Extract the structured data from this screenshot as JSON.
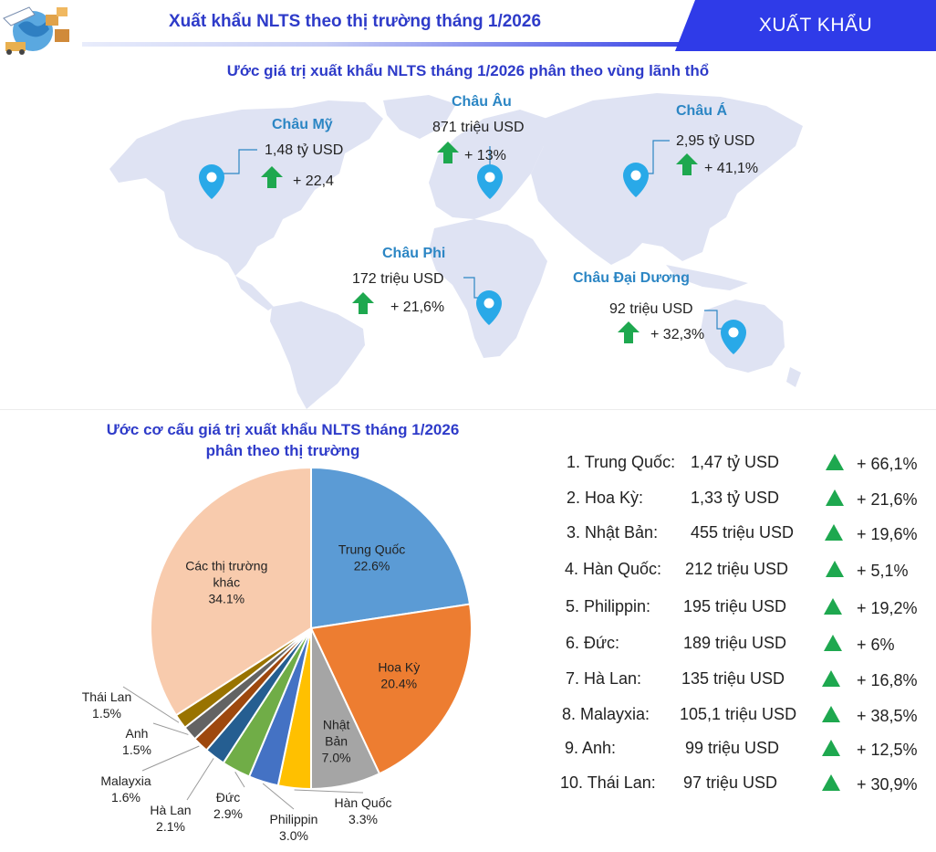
{
  "header": {
    "title": "Xuất khẩu NLTS theo thị trường tháng 1/2026",
    "badge": "XUẤT KHẨU"
  },
  "map": {
    "title": "Ước giá trị xuất khẩu NLTS tháng 1/2026 phân theo vùng lãnh thổ",
    "regions": [
      {
        "name": "Châu Mỹ",
        "value": "1,48 tỷ USD",
        "growth": "+ 22,4"
      },
      {
        "name": "Châu Âu",
        "value": "871 triệu USD",
        "growth": "+ 13%"
      },
      {
        "name": "Châu Á",
        "value": "2,95 tỷ USD",
        "growth": "+ 41,1%"
      },
      {
        "name": "Châu Phi",
        "value": "172 triệu USD",
        "growth": "+ 21,6%"
      },
      {
        "name": "Châu Đại Dương",
        "value": "92 triệu USD",
        "growth": "+ 32,3%"
      }
    ]
  },
  "chart_data": {
    "type": "pie",
    "title": "Ước cơ cấu giá trị xuất khẩu NLTS tháng 1/2026\nphân theo thị trường",
    "title_lines": [
      "Ước cơ cấu giá trị xuất khẩu NLTS tháng 1/2026",
      "phân theo thị trường"
    ],
    "categories": [
      "Trung Quốc",
      "Hoa Kỳ",
      "Nhật Bản",
      "Hàn Quốc",
      "Philippin",
      "Đức",
      "Hà Lan",
      "Malayxia",
      "Anh",
      "Thái Lan",
      "Các thị trường khác"
    ],
    "values": [
      22.6,
      20.4,
      7.0,
      3.3,
      3.0,
      2.9,
      2.1,
      1.6,
      1.5,
      1.5,
      34.1
    ],
    "labels": [
      "22.6%",
      "20.4%",
      "7.0%",
      "3.3%",
      "3.0%",
      "2.9%",
      "2.1%",
      "1.6%",
      "1.5%",
      "1.5%",
      "34.1%"
    ],
    "colors": [
      "#5b9bd5",
      "#ed7d31",
      "#a5a5a5",
      "#ffc000",
      "#4472c4",
      "#70ad47",
      "#255e91",
      "#9e480e",
      "#636363",
      "#997300",
      "#f8cbad"
    ]
  },
  "ranking": [
    {
      "name": "1. Trung Quốc:",
      "value": "1,47 tỷ USD",
      "growth": "+ 66,1%"
    },
    {
      "name": "2. Hoa Kỳ:",
      "value": "1,33 tỷ USD",
      "growth": "+ 21,6%"
    },
    {
      "name": "3. Nhật Bản:",
      "value": "455 triệu USD",
      "growth": "+ 19,6%"
    },
    {
      "name": "4. Hàn Quốc:",
      "value": "212 triệu USD",
      "growth": "+ 5,1%"
    },
    {
      "name": "5. Philippin:",
      "value": "195 triệu USD",
      "growth": "+ 19,2%"
    },
    {
      "name": "6. Đức:",
      "value": "189 triệu USD",
      "growth": "+ 6%"
    },
    {
      "name": "7. Hà Lan:",
      "value": "135 triệu USD",
      "growth": "+ 16,8%"
    },
    {
      "name": "8. Malayxia:",
      "value": "105,1 triệu USD",
      "growth": "+ 38,5%"
    },
    {
      "name": "9. Anh:",
      "value": "99 triệu USD",
      "growth": "+ 12,5%"
    },
    {
      "name": "10. Thái Lan:",
      "value": "97 triệu USD",
      "growth": "+ 30,9%"
    }
  ],
  "colors": {
    "title_blue": "#2e3bc9",
    "badge_blue": "#2f3be8",
    "region_blue": "#2c86c4",
    "arrow_green": "#1ea84f",
    "map_fill": "#dfe3f3",
    "pin_blue": "#29a9e8"
  }
}
